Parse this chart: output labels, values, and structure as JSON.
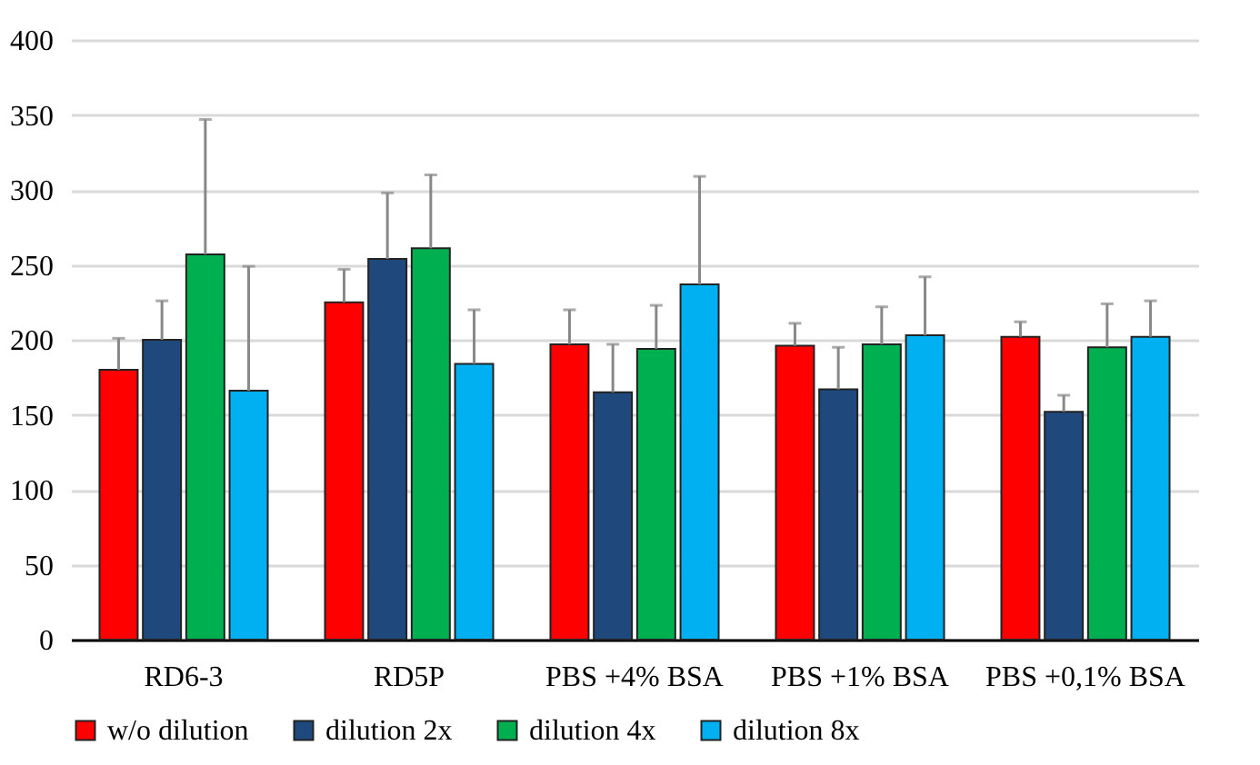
{
  "chart_data": {
    "type": "bar",
    "categories": [
      "RD6-3",
      "RD5P",
      "PBS +4% BSA",
      "PBS +1% BSA",
      "PBS +0,1% BSA"
    ],
    "series": [
      {
        "name": "w/o dilution",
        "color": "#ff0000",
        "values": [
          180,
          225,
          197,
          196,
          202
        ],
        "errors": [
          [
            180,
            201
          ],
          [
            225,
            247
          ],
          [
            197,
            220
          ],
          [
            196,
            211
          ],
          [
            202,
            212
          ]
        ]
      },
      {
        "name": "dilution 2x",
        "color": "#1f497d",
        "values": [
          200,
          254,
          165,
          167,
          152
        ],
        "errors": [
          [
            200,
            226
          ],
          [
            254,
            298
          ],
          [
            165,
            197
          ],
          [
            167,
            195
          ],
          [
            152,
            163
          ]
        ]
      },
      {
        "name": "dilution 4x",
        "color": "#00b050",
        "values": [
          257,
          261,
          194,
          197,
          195
        ],
        "errors": [
          [
            257,
            347
          ],
          [
            261,
            310
          ],
          [
            194,
            223
          ],
          [
            197,
            222
          ],
          [
            195,
            224
          ]
        ]
      },
      {
        "name": "dilution 8x",
        "color": "#00b0f0",
        "values": [
          166,
          184,
          237,
          203,
          202
        ],
        "errors": [
          [
            166,
            249
          ],
          [
            184,
            220
          ],
          [
            237,
            309
          ],
          [
            203,
            242
          ],
          [
            202,
            226
          ]
        ]
      }
    ],
    "ylim": [
      0,
      400
    ],
    "yticks": [
      0,
      50,
      100,
      150,
      200,
      250,
      300,
      350,
      400
    ],
    "grid": "y",
    "legend": "bottom"
  }
}
